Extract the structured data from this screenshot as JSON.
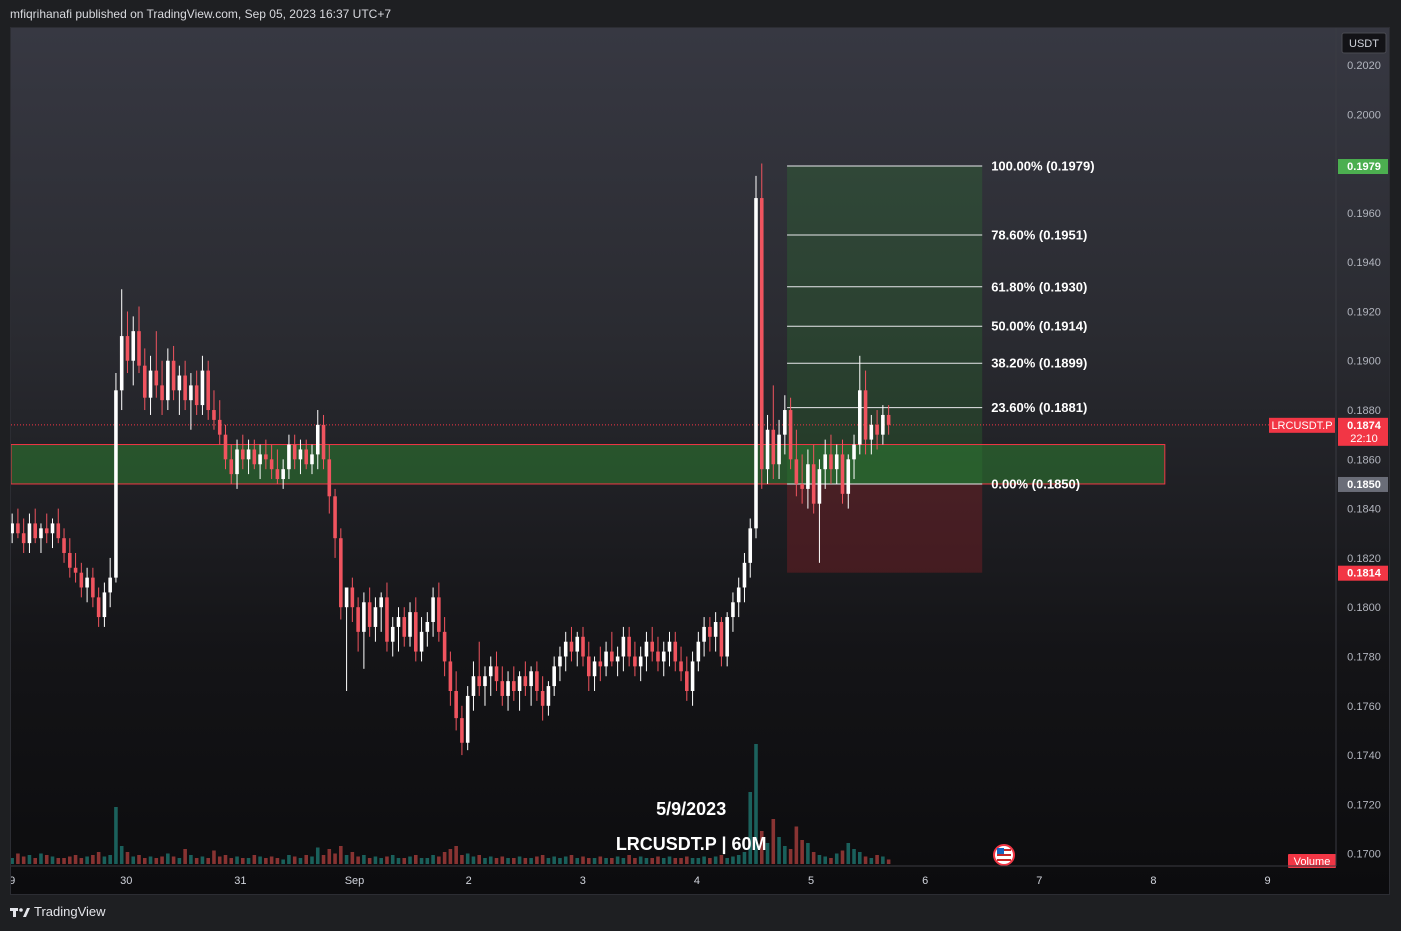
{
  "header": {
    "publisher_line": "mfiqrihanafi published on TradingView.com, Sep 05, 2023 16:37 UTC+7"
  },
  "footer": {
    "brand": "TradingView"
  },
  "overlay_text": {
    "date": "5/9/2023",
    "symbol_tf": "LRCUSDT.P | 60M"
  },
  "colors": {
    "up": "#ffffff",
    "down": "#f0545f",
    "tag_green": "#4caf50",
    "tag_red": "#f23645",
    "tag_gray": "#6a6d78",
    "zone_green": "#2e7d32",
    "zone_red": "#7a1f26",
    "vol_up": "#26a69a",
    "vol_down": "#ef5350"
  },
  "chart_data": {
    "type": "candlestick",
    "symbol": "LRCUSDT.P",
    "timeframe": "60M",
    "currency": "USDT",
    "ylim": [
      0.1695,
      0.2035
    ],
    "y_ticks": [
      "0.2020",
      "0.2000",
      "0.1960",
      "0.1940",
      "0.1920",
      "0.1900",
      "0.1880",
      "0.1860",
      "0.1840",
      "0.1820",
      "0.1800",
      "0.1780",
      "0.1760",
      "0.1740",
      "0.1720",
      "0.1700"
    ],
    "x_ticks": [
      {
        "label": "9",
        "day": 29
      },
      {
        "label": "30",
        "day": 30
      },
      {
        "label": "31",
        "day": 31
      },
      {
        "label": "Sep",
        "day": 32
      },
      {
        "label": "2",
        "day": 33
      },
      {
        "label": "3",
        "day": 34
      },
      {
        "label": "4",
        "day": 35
      },
      {
        "label": "5",
        "day": 36
      },
      {
        "label": "6",
        "day": 37
      },
      {
        "label": "7",
        "day": 38
      },
      {
        "label": "8",
        "day": 39
      },
      {
        "label": "9",
        "day": 40
      }
    ],
    "x_range": [
      28.99,
      40.6
    ],
    "last_price": {
      "label": "LRCUSDT.P",
      "value": 0.1874,
      "countdown": "22:10"
    },
    "price_tags": [
      {
        "value": 0.1979,
        "text": "0.1979",
        "color": "#4caf50"
      },
      {
        "value": 0.185,
        "text": "0.1850",
        "color": "#6a6d78"
      },
      {
        "value": 0.1814,
        "text": "0.1814",
        "color": "#f23645"
      }
    ],
    "fib_levels": [
      {
        "pct": "100.00%",
        "value": 0.1979,
        "label": "100.00% (0.1979)"
      },
      {
        "pct": "78.60%",
        "value": 0.1951,
        "label": "78.60% (0.1951)"
      },
      {
        "pct": "61.80%",
        "value": 0.193,
        "label": "61.80% (0.1930)"
      },
      {
        "pct": "50.00%",
        "value": 0.1914,
        "label": "50.00% (0.1914)"
      },
      {
        "pct": "38.20%",
        "value": 0.1899,
        "label": "38.20% (0.1899)"
      },
      {
        "pct": "23.60%",
        "value": 0.1881,
        "label": "23.60% (0.1881)"
      },
      {
        "pct": "0.00%",
        "value": 0.185,
        "label": "0.00% (0.1850)"
      }
    ],
    "fib_x_range": [
      35.79,
      37.5
    ],
    "position": {
      "entry": 0.185,
      "target": 0.1979,
      "stop": 0.1814,
      "x_range": [
        35.79,
        37.5
      ]
    },
    "zone_rect": {
      "top": 0.1866,
      "bottom": 0.185,
      "x_range": [
        28.99,
        39.1
      ]
    },
    "volume_label": "Volume",
    "candles": [
      {
        "o": 0.183,
        "h": 0.1838,
        "l": 0.1826,
        "c": 0.1834
      },
      {
        "o": 0.1834,
        "h": 0.184,
        "l": 0.1828,
        "c": 0.183
      },
      {
        "o": 0.183,
        "h": 0.1836,
        "l": 0.1822,
        "c": 0.1826
      },
      {
        "o": 0.1826,
        "h": 0.1838,
        "l": 0.1822,
        "c": 0.1834
      },
      {
        "o": 0.1834,
        "h": 0.184,
        "l": 0.1826,
        "c": 0.1828
      },
      {
        "o": 0.1828,
        "h": 0.1834,
        "l": 0.1822,
        "c": 0.1832
      },
      {
        "o": 0.1832,
        "h": 0.1838,
        "l": 0.1826,
        "c": 0.183
      },
      {
        "o": 0.183,
        "h": 0.1836,
        "l": 0.1824,
        "c": 0.1834
      },
      {
        "o": 0.1834,
        "h": 0.184,
        "l": 0.1826,
        "c": 0.1828
      },
      {
        "o": 0.1828,
        "h": 0.1832,
        "l": 0.1818,
        "c": 0.1822
      },
      {
        "o": 0.1822,
        "h": 0.1828,
        "l": 0.1812,
        "c": 0.1816
      },
      {
        "o": 0.1816,
        "h": 0.1822,
        "l": 0.181,
        "c": 0.1814
      },
      {
        "o": 0.1814,
        "h": 0.1818,
        "l": 0.1804,
        "c": 0.1808
      },
      {
        "o": 0.1808,
        "h": 0.1816,
        "l": 0.1802,
        "c": 0.1812
      },
      {
        "o": 0.1812,
        "h": 0.1816,
        "l": 0.18,
        "c": 0.1804
      },
      {
        "o": 0.1804,
        "h": 0.1808,
        "l": 0.1792,
        "c": 0.1796
      },
      {
        "o": 0.1796,
        "h": 0.181,
        "l": 0.1792,
        "c": 0.1806
      },
      {
        "o": 0.1806,
        "h": 0.182,
        "l": 0.18,
        "c": 0.1812
      },
      {
        "o": 0.1812,
        "h": 0.1895,
        "l": 0.181,
        "c": 0.1888
      },
      {
        "o": 0.1888,
        "h": 0.1929,
        "l": 0.188,
        "c": 0.191
      },
      {
        "o": 0.191,
        "h": 0.192,
        "l": 0.1895,
        "c": 0.19
      },
      {
        "o": 0.19,
        "h": 0.1918,
        "l": 0.189,
        "c": 0.1912
      },
      {
        "o": 0.1912,
        "h": 0.1922,
        "l": 0.1895,
        "c": 0.1898
      },
      {
        "o": 0.1898,
        "h": 0.1905,
        "l": 0.188,
        "c": 0.1885
      },
      {
        "o": 0.1885,
        "h": 0.1902,
        "l": 0.1878,
        "c": 0.1896
      },
      {
        "o": 0.1896,
        "h": 0.1912,
        "l": 0.1885,
        "c": 0.189
      },
      {
        "o": 0.189,
        "h": 0.19,
        "l": 0.1878,
        "c": 0.1884
      },
      {
        "o": 0.1884,
        "h": 0.1905,
        "l": 0.188,
        "c": 0.19
      },
      {
        "o": 0.19,
        "h": 0.1906,
        "l": 0.1884,
        "c": 0.1888
      },
      {
        "o": 0.1888,
        "h": 0.1898,
        "l": 0.1878,
        "c": 0.1894
      },
      {
        "o": 0.1894,
        "h": 0.19,
        "l": 0.188,
        "c": 0.1884
      },
      {
        "o": 0.1884,
        "h": 0.1895,
        "l": 0.1872,
        "c": 0.189
      },
      {
        "o": 0.189,
        "h": 0.1896,
        "l": 0.1878,
        "c": 0.1882
      },
      {
        "o": 0.1882,
        "h": 0.1902,
        "l": 0.1878,
        "c": 0.1896
      },
      {
        "o": 0.1896,
        "h": 0.19,
        "l": 0.1876,
        "c": 0.188
      },
      {
        "o": 0.188,
        "h": 0.1888,
        "l": 0.1872,
        "c": 0.1876
      },
      {
        "o": 0.1876,
        "h": 0.1884,
        "l": 0.1866,
        "c": 0.187
      },
      {
        "o": 0.187,
        "h": 0.1874,
        "l": 0.1856,
        "c": 0.186
      },
      {
        "o": 0.186,
        "h": 0.1866,
        "l": 0.185,
        "c": 0.1854
      },
      {
        "o": 0.1854,
        "h": 0.1868,
        "l": 0.1848,
        "c": 0.1864
      },
      {
        "o": 0.1864,
        "h": 0.187,
        "l": 0.1856,
        "c": 0.186
      },
      {
        "o": 0.186,
        "h": 0.1868,
        "l": 0.1854,
        "c": 0.1864
      },
      {
        "o": 0.1864,
        "h": 0.1868,
        "l": 0.1856,
        "c": 0.1858
      },
      {
        "o": 0.1858,
        "h": 0.1866,
        "l": 0.1852,
        "c": 0.1862
      },
      {
        "o": 0.1862,
        "h": 0.1868,
        "l": 0.1856,
        "c": 0.186
      },
      {
        "o": 0.186,
        "h": 0.1866,
        "l": 0.1852,
        "c": 0.1856
      },
      {
        "o": 0.1856,
        "h": 0.1864,
        "l": 0.185,
        "c": 0.1852
      },
      {
        "o": 0.1852,
        "h": 0.186,
        "l": 0.1848,
        "c": 0.1856
      },
      {
        "o": 0.1856,
        "h": 0.187,
        "l": 0.1852,
        "c": 0.1866
      },
      {
        "o": 0.1866,
        "h": 0.187,
        "l": 0.1856,
        "c": 0.186
      },
      {
        "o": 0.186,
        "h": 0.1868,
        "l": 0.1854,
        "c": 0.1864
      },
      {
        "o": 0.1864,
        "h": 0.1868,
        "l": 0.1856,
        "c": 0.1858
      },
      {
        "o": 0.1858,
        "h": 0.1866,
        "l": 0.1854,
        "c": 0.1862
      },
      {
        "o": 0.1862,
        "h": 0.188,
        "l": 0.1856,
        "c": 0.1874
      },
      {
        "o": 0.1874,
        "h": 0.1878,
        "l": 0.1856,
        "c": 0.186
      },
      {
        "o": 0.186,
        "h": 0.1866,
        "l": 0.1838,
        "c": 0.1845
      },
      {
        "o": 0.1845,
        "h": 0.1848,
        "l": 0.182,
        "c": 0.1828
      },
      {
        "o": 0.1828,
        "h": 0.1832,
        "l": 0.1795,
        "c": 0.18
      },
      {
        "o": 0.18,
        "h": 0.1808,
        "l": 0.1766,
        "c": 0.1808
      },
      {
        "o": 0.1808,
        "h": 0.1812,
        "l": 0.1794,
        "c": 0.18
      },
      {
        "o": 0.18,
        "h": 0.1804,
        "l": 0.1782,
        "c": 0.179
      },
      {
        "o": 0.179,
        "h": 0.1806,
        "l": 0.1775,
        "c": 0.1802
      },
      {
        "o": 0.1802,
        "h": 0.1808,
        "l": 0.1788,
        "c": 0.1792
      },
      {
        "o": 0.1792,
        "h": 0.1804,
        "l": 0.1786,
        "c": 0.18
      },
      {
        "o": 0.18,
        "h": 0.1806,
        "l": 0.179,
        "c": 0.1804
      },
      {
        "o": 0.1804,
        "h": 0.181,
        "l": 0.1782,
        "c": 0.1786
      },
      {
        "o": 0.1786,
        "h": 0.1796,
        "l": 0.178,
        "c": 0.1792
      },
      {
        "o": 0.1792,
        "h": 0.18,
        "l": 0.1782,
        "c": 0.1796
      },
      {
        "o": 0.1796,
        "h": 0.18,
        "l": 0.1784,
        "c": 0.1788
      },
      {
        "o": 0.1788,
        "h": 0.1802,
        "l": 0.1784,
        "c": 0.1798
      },
      {
        "o": 0.1798,
        "h": 0.1804,
        "l": 0.1778,
        "c": 0.1782
      },
      {
        "o": 0.1782,
        "h": 0.1796,
        "l": 0.1778,
        "c": 0.179
      },
      {
        "o": 0.179,
        "h": 0.1798,
        "l": 0.1784,
        "c": 0.1794
      },
      {
        "o": 0.1794,
        "h": 0.1808,
        "l": 0.1788,
        "c": 0.1804
      },
      {
        "o": 0.1804,
        "h": 0.181,
        "l": 0.1786,
        "c": 0.179
      },
      {
        "o": 0.179,
        "h": 0.1796,
        "l": 0.1772,
        "c": 0.1778
      },
      {
        "o": 0.1778,
        "h": 0.1782,
        "l": 0.176,
        "c": 0.1766
      },
      {
        "o": 0.1766,
        "h": 0.1774,
        "l": 0.175,
        "c": 0.1755
      },
      {
        "o": 0.1755,
        "h": 0.176,
        "l": 0.174,
        "c": 0.1745
      },
      {
        "o": 0.1745,
        "h": 0.1768,
        "l": 0.1742,
        "c": 0.1764
      },
      {
        "o": 0.1764,
        "h": 0.1778,
        "l": 0.1758,
        "c": 0.1772
      },
      {
        "o": 0.1772,
        "h": 0.1786,
        "l": 0.1764,
        "c": 0.1768
      },
      {
        "o": 0.1768,
        "h": 0.1776,
        "l": 0.176,
        "c": 0.1772
      },
      {
        "o": 0.1772,
        "h": 0.178,
        "l": 0.1764,
        "c": 0.1776
      },
      {
        "o": 0.1776,
        "h": 0.1782,
        "l": 0.1766,
        "c": 0.177
      },
      {
        "o": 0.177,
        "h": 0.1776,
        "l": 0.176,
        "c": 0.1764
      },
      {
        "o": 0.1764,
        "h": 0.1774,
        "l": 0.1758,
        "c": 0.177
      },
      {
        "o": 0.177,
        "h": 0.1776,
        "l": 0.1762,
        "c": 0.1766
      },
      {
        "o": 0.1766,
        "h": 0.1774,
        "l": 0.1758,
        "c": 0.1772
      },
      {
        "o": 0.1772,
        "h": 0.1778,
        "l": 0.1764,
        "c": 0.1768
      },
      {
        "o": 0.1768,
        "h": 0.1776,
        "l": 0.176,
        "c": 0.1774
      },
      {
        "o": 0.1774,
        "h": 0.1778,
        "l": 0.1762,
        "c": 0.1766
      },
      {
        "o": 0.1766,
        "h": 0.1772,
        "l": 0.1754,
        "c": 0.176
      },
      {
        "o": 0.176,
        "h": 0.177,
        "l": 0.1756,
        "c": 0.1768
      },
      {
        "o": 0.1768,
        "h": 0.178,
        "l": 0.1764,
        "c": 0.1776
      },
      {
        "o": 0.1776,
        "h": 0.1784,
        "l": 0.177,
        "c": 0.178
      },
      {
        "o": 0.178,
        "h": 0.179,
        "l": 0.1774,
        "c": 0.1786
      },
      {
        "o": 0.1786,
        "h": 0.1792,
        "l": 0.1778,
        "c": 0.1782
      },
      {
        "o": 0.1782,
        "h": 0.179,
        "l": 0.1776,
        "c": 0.1788
      },
      {
        "o": 0.1788,
        "h": 0.1792,
        "l": 0.1776,
        "c": 0.178
      },
      {
        "o": 0.178,
        "h": 0.1786,
        "l": 0.1766,
        "c": 0.1772
      },
      {
        "o": 0.1772,
        "h": 0.178,
        "l": 0.1766,
        "c": 0.1778
      },
      {
        "o": 0.1778,
        "h": 0.1784,
        "l": 0.177,
        "c": 0.1776
      },
      {
        "o": 0.1776,
        "h": 0.1786,
        "l": 0.1772,
        "c": 0.1782
      },
      {
        "o": 0.1782,
        "h": 0.179,
        "l": 0.1776,
        "c": 0.1778
      },
      {
        "o": 0.1778,
        "h": 0.1784,
        "l": 0.1772,
        "c": 0.178
      },
      {
        "o": 0.178,
        "h": 0.1792,
        "l": 0.1774,
        "c": 0.1788
      },
      {
        "o": 0.1788,
        "h": 0.1792,
        "l": 0.1776,
        "c": 0.178
      },
      {
        "o": 0.178,
        "h": 0.1786,
        "l": 0.1772,
        "c": 0.1776
      },
      {
        "o": 0.1776,
        "h": 0.1784,
        "l": 0.177,
        "c": 0.178
      },
      {
        "o": 0.178,
        "h": 0.179,
        "l": 0.1774,
        "c": 0.1786
      },
      {
        "o": 0.1786,
        "h": 0.1792,
        "l": 0.1778,
        "c": 0.1782
      },
      {
        "o": 0.1782,
        "h": 0.1788,
        "l": 0.1774,
        "c": 0.1778
      },
      {
        "o": 0.1778,
        "h": 0.1786,
        "l": 0.1772,
        "c": 0.1782
      },
      {
        "o": 0.1782,
        "h": 0.179,
        "l": 0.1776,
        "c": 0.1786
      },
      {
        "o": 0.1786,
        "h": 0.179,
        "l": 0.1774,
        "c": 0.1778
      },
      {
        "o": 0.1778,
        "h": 0.1784,
        "l": 0.177,
        "c": 0.1774
      },
      {
        "o": 0.1774,
        "h": 0.178,
        "l": 0.1762,
        "c": 0.1766
      },
      {
        "o": 0.1766,
        "h": 0.1782,
        "l": 0.176,
        "c": 0.1778
      },
      {
        "o": 0.1778,
        "h": 0.179,
        "l": 0.1774,
        "c": 0.1786
      },
      {
        "o": 0.1786,
        "h": 0.1796,
        "l": 0.178,
        "c": 0.1792
      },
      {
        "o": 0.1792,
        "h": 0.1796,
        "l": 0.1782,
        "c": 0.1788
      },
      {
        "o": 0.1788,
        "h": 0.1798,
        "l": 0.1782,
        "c": 0.1794
      },
      {
        "o": 0.1794,
        "h": 0.1796,
        "l": 0.1776,
        "c": 0.178
      },
      {
        "o": 0.178,
        "h": 0.1798,
        "l": 0.1776,
        "c": 0.1796
      },
      {
        "o": 0.1796,
        "h": 0.1806,
        "l": 0.179,
        "c": 0.1802
      },
      {
        "o": 0.1802,
        "h": 0.1812,
        "l": 0.1796,
        "c": 0.1808
      },
      {
        "o": 0.1808,
        "h": 0.1822,
        "l": 0.1802,
        "c": 0.1818
      },
      {
        "o": 0.1818,
        "h": 0.1836,
        "l": 0.1812,
        "c": 0.1832
      },
      {
        "o": 0.1832,
        "h": 0.1975,
        "l": 0.1828,
        "c": 0.1966
      },
      {
        "o": 0.1966,
        "h": 0.198,
        "l": 0.1848,
        "c": 0.1856
      },
      {
        "o": 0.1856,
        "h": 0.1878,
        "l": 0.185,
        "c": 0.1872
      },
      {
        "o": 0.1872,
        "h": 0.189,
        "l": 0.1852,
        "c": 0.1858
      },
      {
        "o": 0.1858,
        "h": 0.1876,
        "l": 0.1852,
        "c": 0.187
      },
      {
        "o": 0.187,
        "h": 0.1886,
        "l": 0.1862,
        "c": 0.188
      },
      {
        "o": 0.188,
        "h": 0.1885,
        "l": 0.1856,
        "c": 0.186
      },
      {
        "o": 0.186,
        "h": 0.1872,
        "l": 0.1845,
        "c": 0.185
      },
      {
        "o": 0.185,
        "h": 0.1862,
        "l": 0.1842,
        "c": 0.1848
      },
      {
        "o": 0.1848,
        "h": 0.1864,
        "l": 0.184,
        "c": 0.1858
      },
      {
        "o": 0.1858,
        "h": 0.1866,
        "l": 0.1838,
        "c": 0.1842
      },
      {
        "o": 0.1842,
        "h": 0.186,
        "l": 0.1818,
        "c": 0.1856
      },
      {
        "o": 0.1856,
        "h": 0.1868,
        "l": 0.1848,
        "c": 0.1862
      },
      {
        "o": 0.1862,
        "h": 0.187,
        "l": 0.185,
        "c": 0.1856
      },
      {
        "o": 0.1856,
        "h": 0.1866,
        "l": 0.185,
        "c": 0.1862
      },
      {
        "o": 0.1862,
        "h": 0.1868,
        "l": 0.1842,
        "c": 0.1846
      },
      {
        "o": 0.1846,
        "h": 0.1862,
        "l": 0.184,
        "c": 0.186
      },
      {
        "o": 0.186,
        "h": 0.187,
        "l": 0.1852,
        "c": 0.1866
      },
      {
        "o": 0.1866,
        "h": 0.1902,
        "l": 0.1862,
        "c": 0.1888
      },
      {
        "o": 0.1888,
        "h": 0.1896,
        "l": 0.1862,
        "c": 0.1868
      },
      {
        "o": 0.1868,
        "h": 0.1878,
        "l": 0.1862,
        "c": 0.1874
      },
      {
        "o": 0.1874,
        "h": 0.188,
        "l": 0.1864,
        "c": 0.187
      },
      {
        "o": 0.187,
        "h": 0.1882,
        "l": 0.1866,
        "c": 0.1878
      },
      {
        "o": 0.1878,
        "h": 0.1882,
        "l": 0.187,
        "c": 0.1874
      }
    ],
    "volumes": [
      4,
      7,
      5,
      6,
      4,
      7,
      6,
      5,
      4,
      4,
      5,
      6,
      4,
      5,
      6,
      8,
      5,
      6,
      38,
      12,
      8,
      5,
      6,
      4,
      5,
      4,
      5,
      7,
      5,
      4,
      10,
      6,
      4,
      5,
      4,
      9,
      5,
      6,
      4,
      5,
      4,
      4,
      6,
      5,
      4,
      5,
      4,
      3,
      6,
      5,
      4,
      6,
      5,
      11,
      6,
      10,
      7,
      12,
      6,
      8,
      5,
      6,
      4,
      5,
      4,
      5,
      6,
      4,
      4,
      5,
      6,
      4,
      4,
      6,
      5,
      8,
      10,
      12,
      6,
      7,
      5,
      6,
      4,
      5,
      4,
      5,
      4,
      4,
      5,
      4,
      4,
      5,
      6,
      4,
      5,
      4,
      5,
      6,
      4,
      5,
      4,
      4,
      5,
      4,
      4,
      5,
      4,
      6,
      4,
      5,
      4,
      4,
      5,
      4,
      5,
      4,
      4,
      5,
      4,
      4,
      5,
      4,
      5,
      6,
      4,
      5,
      6,
      8,
      48,
      80,
      22,
      14,
      30,
      18,
      12,
      10,
      25,
      16,
      14,
      8,
      6,
      5,
      4,
      7,
      9,
      14,
      10,
      8,
      5,
      4,
      6,
      5,
      3
    ]
  }
}
